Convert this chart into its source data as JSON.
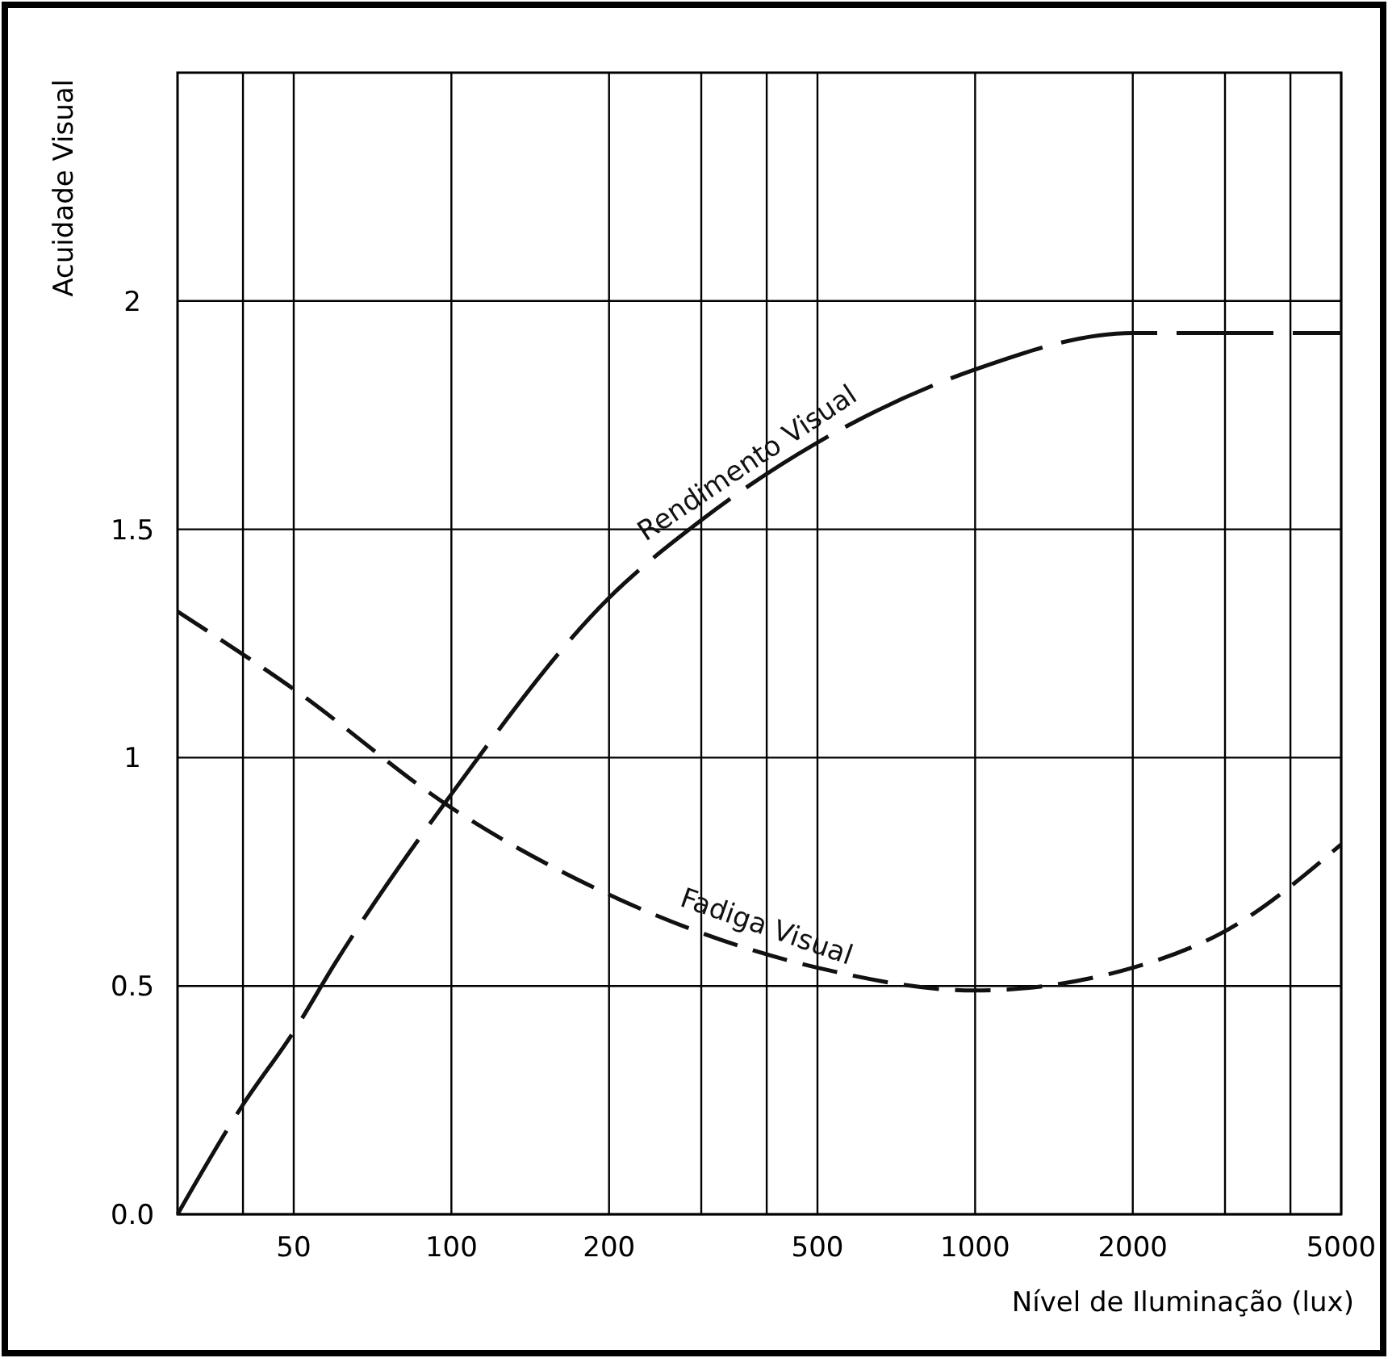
{
  "chart_data": {
    "type": "line",
    "xlabel": "Nível de Iluminação (lux)",
    "ylabel": "Acuidade Visual",
    "log": "x",
    "grid": true,
    "line_style": "dashed",
    "marker": "none",
    "xlim": [
      30,
      5000
    ],
    "xticks": [
      {
        "value": 40,
        "label": null
      },
      50,
      100,
      200,
      {
        "value": 300,
        "label": null
      },
      {
        "value": 400,
        "label": null
      },
      500,
      1000,
      2000,
      {
        "value": 3000,
        "label": null
      },
      {
        "value": 4000,
        "label": null
      },
      5000
    ],
    "ylim": [
      0,
      2.5
    ],
    "yticks": [
      {
        "value": 0,
        "label": "0.0"
      },
      0.5,
      1,
      1.5,
      2
    ],
    "series": [
      {
        "name": "Rendimento Visual",
        "color": "#111111",
        "x": [
          30,
          40,
          50,
          60,
          100,
          200,
          300,
          500,
          1000,
          2000,
          5000
        ],
        "values": [
          0,
          0.24,
          0.4,
          0.55,
          0.92,
          1.35,
          1.52,
          1.69,
          1.85,
          1.93,
          1.93
        ]
      },
      {
        "name": "Fadiga Visual",
        "color": "#111111",
        "x": [
          30,
          50,
          100,
          200,
          500,
          1000,
          2000,
          3000,
          5000
        ],
        "values": [
          1.32,
          1.15,
          0.89,
          0.7,
          0.54,
          0.49,
          0.54,
          0.62,
          0.81
        ]
      }
    ]
  }
}
